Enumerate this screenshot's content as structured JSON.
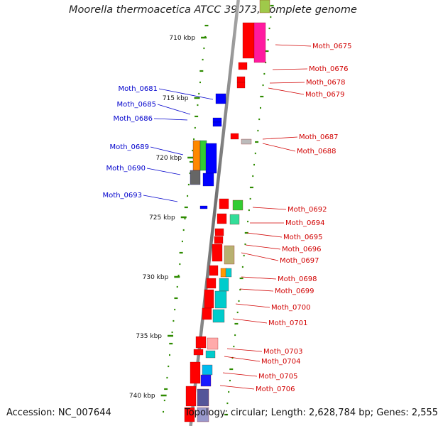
{
  "title": "Moorella thermoacetica ATCC 39073, complete genome",
  "footer": {
    "accession": "Accession: NC_007644",
    "summary": "Topology: circular; Length: 2,628,784 bp; Genes: 2,555"
  },
  "colors": {
    "forward_gene": "#ff0000",
    "reverse_gene": "#0000ff",
    "forward_label": "#d10000",
    "reverse_label": "#0000cc",
    "backbone": "#808080",
    "gc_dots": "#2e8b00"
  },
  "scale_ticks": [
    "710 kbp",
    "715 kbp",
    "720 kbp",
    "725 kbp",
    "730 kbp",
    "735 kbp",
    "740 kbp"
  ],
  "genes_reverse": [
    "Moth_0681",
    "Moth_0685",
    "Moth_0686",
    "Moth_0689",
    "Moth_0690",
    "Moth_0693"
  ],
  "genes_forward": [
    "Moth_0675",
    "Moth_0676",
    "Moth_0678",
    "Moth_0679",
    "Moth_0687",
    "Moth_0688",
    "Moth_0692",
    "Moth_0694",
    "Moth_0695",
    "Moth_0696",
    "Moth_0697",
    "Moth_0698",
    "Moth_0699",
    "Moth_0700",
    "Moth_0701",
    "Moth_0703",
    "Moth_0704",
    "Moth_0705",
    "Moth_0706"
  ]
}
